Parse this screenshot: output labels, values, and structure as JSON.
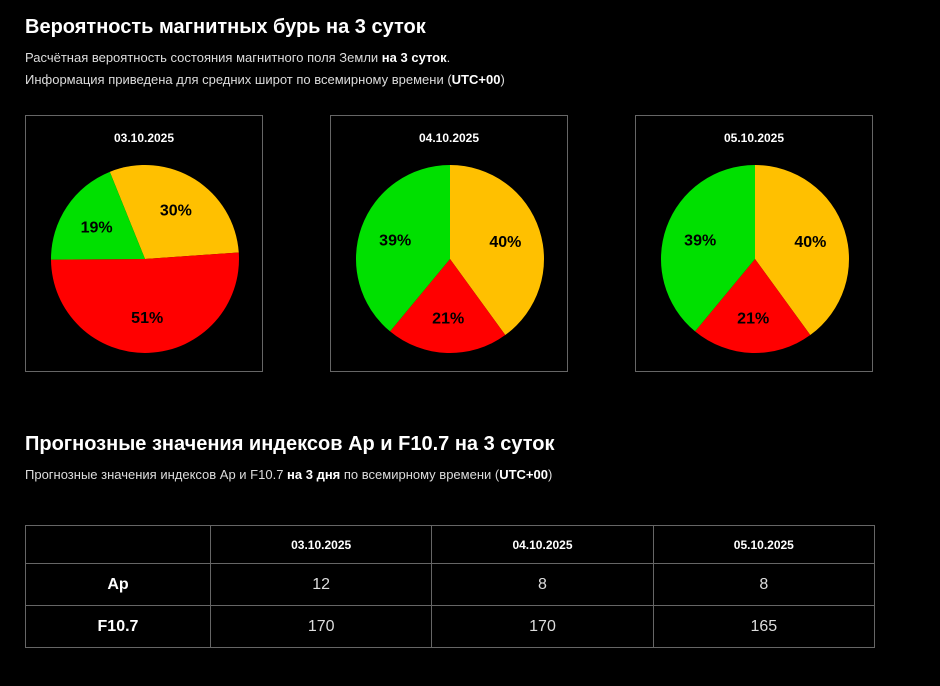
{
  "section1": {
    "title": "Вероятность магнитных бурь на 3 суток",
    "line1_prefix": "Расчётная вероятность состояния магнитного поля Земли ",
    "line1_bold": "на 3 суток",
    "line1_suffix": ".",
    "line2_prefix": "Информация приведена для средних широт по всемирному времени (",
    "line2_bold": "UTC+00",
    "line2_suffix": ")"
  },
  "colors": {
    "green": "#00e000",
    "orange": "#ffc000",
    "red": "#ff0000"
  },
  "chart_data": [
    {
      "type": "pie",
      "title": "03.10.2025",
      "slices": [
        {
          "color": "orange",
          "value": 30,
          "label": "30%"
        },
        {
          "color": "red",
          "value": 51,
          "label": "51%"
        },
        {
          "color": "green",
          "value": 19,
          "label": "19%"
        }
      ]
    },
    {
      "type": "pie",
      "title": "04.10.2025",
      "slices": [
        {
          "color": "orange",
          "value": 40,
          "label": "40%"
        },
        {
          "color": "red",
          "value": 21,
          "label": "21%"
        },
        {
          "color": "green",
          "value": 39,
          "label": "39%"
        }
      ]
    },
    {
      "type": "pie",
      "title": "05.10.2025",
      "slices": [
        {
          "color": "orange",
          "value": 40,
          "label": "40%"
        },
        {
          "color": "red",
          "value": 21,
          "label": "21%"
        },
        {
          "color": "green",
          "value": 39,
          "label": "39%"
        }
      ]
    }
  ],
  "section2": {
    "title": "Прогнозные значения индексов Ap и F10.7 на 3 суток",
    "line_prefix": "Прогнозные значения индексов Ap и F10.7 ",
    "line_bold": "на 3 дня",
    "line_middle": " по всемирному времени (",
    "line_bold2": "UTC+00",
    "line_suffix": ")"
  },
  "table": {
    "columns": [
      "",
      "03.10.2025",
      "04.10.2025",
      "05.10.2025"
    ],
    "rows": [
      {
        "name": "Ap",
        "values": [
          "12",
          "8",
          "8"
        ]
      },
      {
        "name": "F10.7",
        "values": [
          "170",
          "170",
          "165"
        ]
      }
    ]
  }
}
